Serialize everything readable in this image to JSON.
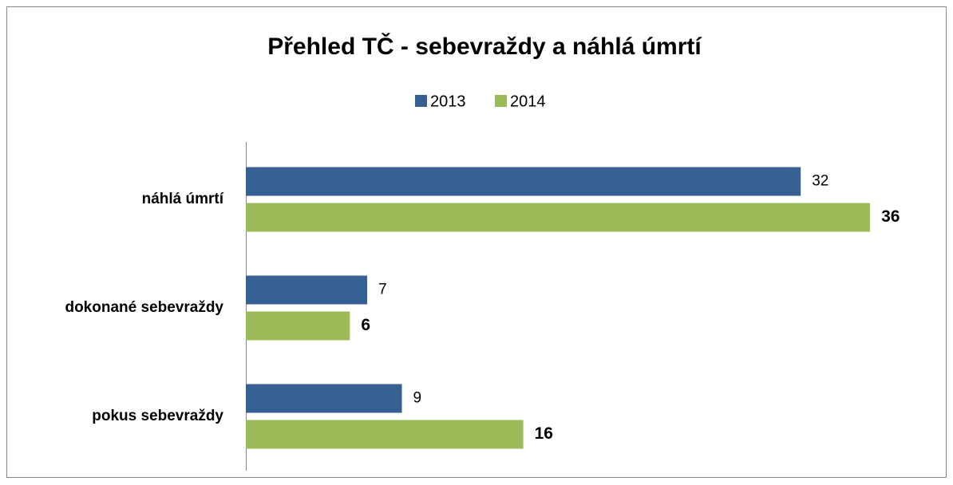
{
  "chart_data": {
    "type": "bar",
    "orientation": "horizontal",
    "title": "Přehled TČ - sebevraždy a náhlá úmrtí",
    "categories": [
      "náhlá úmrtí",
      "dokonané sebevraždy",
      "pokus sebevraždy"
    ],
    "series": [
      {
        "name": "2013",
        "color": "#376092",
        "values": [
          32,
          7,
          9
        ]
      },
      {
        "name": "2014",
        "color": "#9bbb59",
        "values": [
          36,
          6,
          16
        ]
      }
    ],
    "xlim": [
      0,
      40
    ],
    "legend": "top"
  }
}
